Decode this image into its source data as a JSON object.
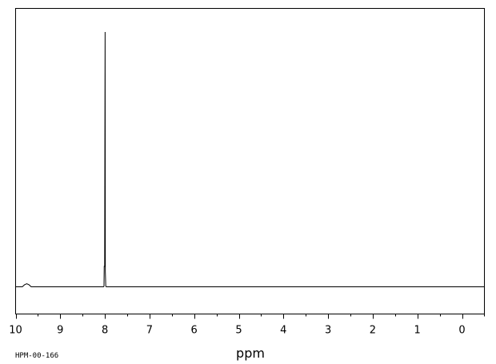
{
  "chart_data": {
    "type": "line",
    "title": "",
    "xlabel": "ppm",
    "ylabel": "",
    "xlim": [
      10,
      -0.5
    ],
    "x_reversed": true,
    "ylim": [
      -0.1,
      1.0
    ],
    "grid": false,
    "legend": "none",
    "major_ticks": [
      10,
      9,
      8,
      7,
      6,
      5,
      4,
      3,
      2,
      1,
      0
    ],
    "tick_labels": [
      "10",
      "9",
      "8",
      "7",
      "6",
      "5",
      "4",
      "3",
      "2",
      "1",
      "0"
    ],
    "minor_step": 0.5,
    "series": [
      {
        "x": [
          10.0,
          9.85,
          9.8,
          9.75,
          9.7,
          9.65,
          8.03,
          8.02,
          8.015,
          8.005,
          7.995,
          7.99,
          7.98,
          7.97,
          -0.5
        ],
        "y": [
          0.0,
          0.0,
          0.008,
          0.012,
          0.008,
          0.0,
          0.0,
          0.002,
          0.08,
          0.08,
          1.0,
          0.06,
          0.003,
          0.0,
          0.0
        ]
      }
    ],
    "color": "#000000"
  },
  "footer": {
    "id_text": "HPM-00-166"
  }
}
